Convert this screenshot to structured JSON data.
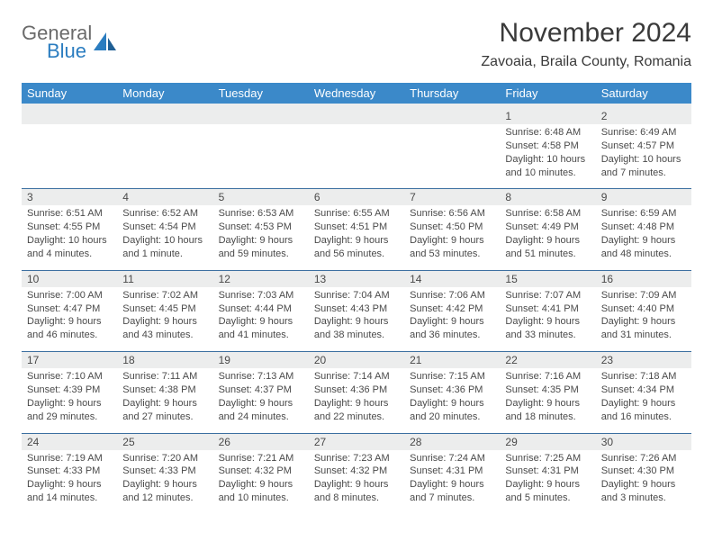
{
  "brand": {
    "word1": "General",
    "word2": "Blue",
    "gray": "#6a6a6a",
    "blue": "#2b7dc0"
  },
  "title": "November 2024",
  "location": "Zavoaia, Braila County, Romania",
  "colors": {
    "headerBg": "#3b89c9",
    "headerText": "#ffffff",
    "numBg": "#eceded",
    "text": "#4a4a4a",
    "divider": "#3b6fa0"
  },
  "daysOfWeek": [
    "Sunday",
    "Monday",
    "Tuesday",
    "Wednesday",
    "Thursday",
    "Friday",
    "Saturday"
  ],
  "weeks": [
    [
      null,
      null,
      null,
      null,
      null,
      {
        "n": "1",
        "sr": "Sunrise: 6:48 AM",
        "ss": "Sunset: 4:58 PM",
        "dl": "Daylight: 10 hours and 10 minutes."
      },
      {
        "n": "2",
        "sr": "Sunrise: 6:49 AM",
        "ss": "Sunset: 4:57 PM",
        "dl": "Daylight: 10 hours and 7 minutes."
      }
    ],
    [
      {
        "n": "3",
        "sr": "Sunrise: 6:51 AM",
        "ss": "Sunset: 4:55 PM",
        "dl": "Daylight: 10 hours and 4 minutes."
      },
      {
        "n": "4",
        "sr": "Sunrise: 6:52 AM",
        "ss": "Sunset: 4:54 PM",
        "dl": "Daylight: 10 hours and 1 minute."
      },
      {
        "n": "5",
        "sr": "Sunrise: 6:53 AM",
        "ss": "Sunset: 4:53 PM",
        "dl": "Daylight: 9 hours and 59 minutes."
      },
      {
        "n": "6",
        "sr": "Sunrise: 6:55 AM",
        "ss": "Sunset: 4:51 PM",
        "dl": "Daylight: 9 hours and 56 minutes."
      },
      {
        "n": "7",
        "sr": "Sunrise: 6:56 AM",
        "ss": "Sunset: 4:50 PM",
        "dl": "Daylight: 9 hours and 53 minutes."
      },
      {
        "n": "8",
        "sr": "Sunrise: 6:58 AM",
        "ss": "Sunset: 4:49 PM",
        "dl": "Daylight: 9 hours and 51 minutes."
      },
      {
        "n": "9",
        "sr": "Sunrise: 6:59 AM",
        "ss": "Sunset: 4:48 PM",
        "dl": "Daylight: 9 hours and 48 minutes."
      }
    ],
    [
      {
        "n": "10",
        "sr": "Sunrise: 7:00 AM",
        "ss": "Sunset: 4:47 PM",
        "dl": "Daylight: 9 hours and 46 minutes."
      },
      {
        "n": "11",
        "sr": "Sunrise: 7:02 AM",
        "ss": "Sunset: 4:45 PM",
        "dl": "Daylight: 9 hours and 43 minutes."
      },
      {
        "n": "12",
        "sr": "Sunrise: 7:03 AM",
        "ss": "Sunset: 4:44 PM",
        "dl": "Daylight: 9 hours and 41 minutes."
      },
      {
        "n": "13",
        "sr": "Sunrise: 7:04 AM",
        "ss": "Sunset: 4:43 PM",
        "dl": "Daylight: 9 hours and 38 minutes."
      },
      {
        "n": "14",
        "sr": "Sunrise: 7:06 AM",
        "ss": "Sunset: 4:42 PM",
        "dl": "Daylight: 9 hours and 36 minutes."
      },
      {
        "n": "15",
        "sr": "Sunrise: 7:07 AM",
        "ss": "Sunset: 4:41 PM",
        "dl": "Daylight: 9 hours and 33 minutes."
      },
      {
        "n": "16",
        "sr": "Sunrise: 7:09 AM",
        "ss": "Sunset: 4:40 PM",
        "dl": "Daylight: 9 hours and 31 minutes."
      }
    ],
    [
      {
        "n": "17",
        "sr": "Sunrise: 7:10 AM",
        "ss": "Sunset: 4:39 PM",
        "dl": "Daylight: 9 hours and 29 minutes."
      },
      {
        "n": "18",
        "sr": "Sunrise: 7:11 AM",
        "ss": "Sunset: 4:38 PM",
        "dl": "Daylight: 9 hours and 27 minutes."
      },
      {
        "n": "19",
        "sr": "Sunrise: 7:13 AM",
        "ss": "Sunset: 4:37 PM",
        "dl": "Daylight: 9 hours and 24 minutes."
      },
      {
        "n": "20",
        "sr": "Sunrise: 7:14 AM",
        "ss": "Sunset: 4:36 PM",
        "dl": "Daylight: 9 hours and 22 minutes."
      },
      {
        "n": "21",
        "sr": "Sunrise: 7:15 AM",
        "ss": "Sunset: 4:36 PM",
        "dl": "Daylight: 9 hours and 20 minutes."
      },
      {
        "n": "22",
        "sr": "Sunrise: 7:16 AM",
        "ss": "Sunset: 4:35 PM",
        "dl": "Daylight: 9 hours and 18 minutes."
      },
      {
        "n": "23",
        "sr": "Sunrise: 7:18 AM",
        "ss": "Sunset: 4:34 PM",
        "dl": "Daylight: 9 hours and 16 minutes."
      }
    ],
    [
      {
        "n": "24",
        "sr": "Sunrise: 7:19 AM",
        "ss": "Sunset: 4:33 PM",
        "dl": "Daylight: 9 hours and 14 minutes."
      },
      {
        "n": "25",
        "sr": "Sunrise: 7:20 AM",
        "ss": "Sunset: 4:33 PM",
        "dl": "Daylight: 9 hours and 12 minutes."
      },
      {
        "n": "26",
        "sr": "Sunrise: 7:21 AM",
        "ss": "Sunset: 4:32 PM",
        "dl": "Daylight: 9 hours and 10 minutes."
      },
      {
        "n": "27",
        "sr": "Sunrise: 7:23 AM",
        "ss": "Sunset: 4:32 PM",
        "dl": "Daylight: 9 hours and 8 minutes."
      },
      {
        "n": "28",
        "sr": "Sunrise: 7:24 AM",
        "ss": "Sunset: 4:31 PM",
        "dl": "Daylight: 9 hours and 7 minutes."
      },
      {
        "n": "29",
        "sr": "Sunrise: 7:25 AM",
        "ss": "Sunset: 4:31 PM",
        "dl": "Daylight: 9 hours and 5 minutes."
      },
      {
        "n": "30",
        "sr": "Sunrise: 7:26 AM",
        "ss": "Sunset: 4:30 PM",
        "dl": "Daylight: 9 hours and 3 minutes."
      }
    ]
  ]
}
